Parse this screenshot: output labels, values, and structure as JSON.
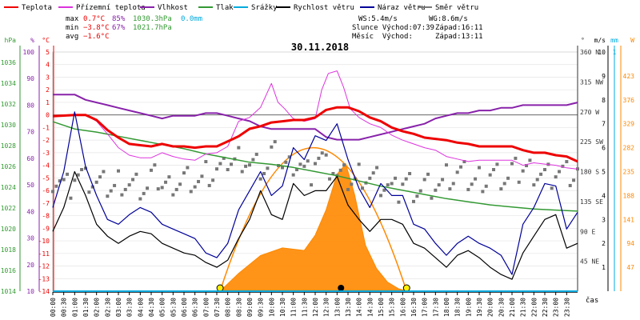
{
  "legend": [
    {
      "label": "Teplota",
      "color": "#ee0000"
    },
    {
      "label": "Přízemní teplota",
      "color": "#dd33dd"
    },
    {
      "label": "Vlhkost",
      "color": "#8822aa"
    },
    {
      "label": "Tlak",
      "color": "#339933"
    },
    {
      "label": "Srážky",
      "color": "#00aadd"
    },
    {
      "label": "Rychlost větru",
      "color": "#000000"
    },
    {
      "label": "Náraz větru",
      "color": "#000099"
    },
    {
      "label": "Směr větru",
      "color": "#777777"
    }
  ],
  "stats": {
    "max_label": "max",
    "max_temp": "0.7°C",
    "max_hum": "85%",
    "max_press": "1030.3hPa",
    "max_rain": "0.0mm",
    "min_label": "min",
    "min_temp": "−3.8°C",
    "min_hum": "67%",
    "min_press": "1021.7hPa",
    "avg_label": "avg",
    "avg_temp": "−1.6°C",
    "ws": "WS:5.4m/s",
    "wg": "WG:8.6m/s",
    "sun_rise": "Slunce Východ:07:39",
    "sun_set": "Západ:16:11",
    "moon_rise": "Měsíc  Východ:",
    "moon_set": "Západ:13:11"
  },
  "colors": {
    "temp": "#ee0000",
    "ground": "#dd33dd",
    "hum": "#8822aa",
    "press": "#339933",
    "rain": "#00aadd",
    "wind": "#000000",
    "gust": "#000099",
    "dir": "#777777",
    "solar": "#ff8800",
    "sunpath": "#ff8800"
  },
  "chart_data": {
    "type": "line",
    "title": "30.11.2018",
    "xlabel": "čas",
    "x_ticks": [
      "00:00",
      "00:30",
      "01:00",
      "01:30",
      "02:00",
      "02:30",
      "03:00",
      "03:30",
      "04:00",
      "04:30",
      "05:00",
      "05:30",
      "06:00",
      "06:30",
      "07:00",
      "07:30",
      "08:00",
      "08:30",
      "09:00",
      "09:30",
      "10:00",
      "10:30",
      "11:00",
      "11:30",
      "12:00",
      "12:30",
      "13:00",
      "13:30",
      "14:00",
      "14:30",
      "15:00",
      "15:30",
      "16:00",
      "16:30",
      "17:00",
      "17:30",
      "18:00",
      "18:30",
      "19:00",
      "19:30",
      "20:00",
      "20:30",
      "21:00",
      "21:30",
      "22:00",
      "22:30",
      "23:00",
      "23:30"
    ],
    "xlim_hours": [
      0,
      24
    ],
    "axes": {
      "hPa": {
        "label": "hPa",
        "ticks": [
          "1036",
          "1034",
          "1032",
          "1030",
          "1028",
          "1026",
          "1024",
          "1022",
          "1020",
          "1018",
          "1016",
          "1014"
        ],
        "ylim": [
          1014,
          1037
        ]
      },
      "humidity": {
        "label": "%",
        "ticks": [
          "100",
          "90",
          "80",
          "70",
          "60",
          "50",
          "40",
          "30",
          "20",
          "10"
        ],
        "ylim": [
          10,
          100
        ]
      },
      "temperature": {
        "label": "°C",
        "ticks": [
          "5",
          "4",
          "3",
          "2",
          "1",
          "0",
          "-1",
          "-2",
          "-3",
          "-4",
          "-5",
          "-6",
          "-7",
          "-8",
          "-9",
          "-10",
          "-11",
          "-12",
          "-13",
          "-14"
        ],
        "ylim": [
          -14,
          5
        ]
      },
      "direction": {
        "label": "°",
        "ticks": [
          "360 N",
          "315 NW",
          "270 W",
          "225 SW",
          "180 S",
          "135 SE",
          "90 E",
          "45 NE"
        ],
        "ylim": [
          0,
          360
        ]
      },
      "wind": {
        "label": "m/s",
        "ticks": [
          "10",
          "9",
          "8",
          "7",
          "6",
          "5",
          "4",
          "3",
          "2",
          "1"
        ],
        "ylim": [
          0,
          10
        ]
      },
      "rain": {
        "label": "mm",
        "ticks": [
          "1"
        ],
        "ylim": [
          0,
          1
        ]
      },
      "solar": {
        "label": "W",
        "ticks": [
          "423",
          "376",
          "329",
          "282",
          "235",
          "188",
          "141",
          "94",
          "47"
        ],
        "ylim": [
          0,
          470
        ]
      }
    },
    "series": [
      {
        "name": "Teplota",
        "unit": "°C",
        "x": [
          0,
          1,
          1.5,
          2,
          2.5,
          3,
          3.5,
          4,
          4.5,
          5,
          5.5,
          6,
          6.5,
          7,
          7.5,
          8,
          8.5,
          9,
          9.5,
          10,
          10.5,
          11,
          11.5,
          12,
          12.5,
          13,
          13.5,
          14,
          14.5,
          15,
          15.5,
          16,
          16.5,
          17,
          17.5,
          18,
          18.5,
          19,
          19.5,
          20,
          20.5,
          21,
          21.5,
          22,
          22.5,
          23,
          23.5,
          24
        ],
        "y": [
          -0.1,
          0.0,
          0.0,
          -0.4,
          -1.2,
          -1.8,
          -2.3,
          -2.4,
          -2.5,
          -2.3,
          -2.5,
          -2.5,
          -2.6,
          -2.5,
          -2.5,
          -2.1,
          -1.7,
          -1.1,
          -0.9,
          -0.6,
          -0.5,
          -0.4,
          -0.4,
          -0.2,
          0.4,
          0.6,
          0.6,
          0.3,
          -0.2,
          -0.5,
          -1.0,
          -1.3,
          -1.5,
          -1.8,
          -1.9,
          -2.0,
          -2.2,
          -2.3,
          -2.5,
          -2.5,
          -2.5,
          -2.5,
          -2.8,
          -3.0,
          -3.0,
          -3.2,
          -3.3,
          -3.7
        ]
      },
      {
        "name": "Přízemní teplota",
        "unit": "°C",
        "x": [
          0,
          1,
          1.5,
          2,
          2.5,
          3,
          3.5,
          4,
          4.5,
          5,
          5.5,
          6,
          6.5,
          7,
          7.5,
          8,
          8.5,
          9,
          9.5,
          10,
          10.3,
          10.6,
          11,
          11.5,
          12,
          12.3,
          12.6,
          13,
          13.3,
          13.6,
          14,
          14.5,
          15,
          15.5,
          16,
          16.5,
          17,
          17.5,
          18,
          18.5,
          19,
          19.5,
          20,
          20.5,
          21,
          21.5,
          22,
          22.5,
          23,
          23.5,
          24
        ],
        "y": [
          -0.1,
          0.0,
          0.0,
          -0.5,
          -1.5,
          -2.6,
          -3.2,
          -3.4,
          -3.4,
          -3.0,
          -3.3,
          -3.5,
          -3.6,
          -3.1,
          -3.0,
          -2.5,
          -0.5,
          -0.2,
          0.6,
          2.5,
          1.0,
          0.5,
          -0.3,
          -0.5,
          -0.3,
          2.0,
          3.3,
          3.5,
          2.2,
          0.5,
          -0.2,
          -0.7,
          -1.0,
          -1.6,
          -2.0,
          -2.3,
          -2.6,
          -2.8,
          -3.3,
          -3.5,
          -3.7,
          -3.6,
          -3.6,
          -3.6,
          -3.6,
          -4.0,
          -3.8,
          -3.9,
          -4.0,
          -4.2,
          -4.3
        ]
      },
      {
        "name": "Vlhkost",
        "unit": "%",
        "x": [
          0,
          0.5,
          1,
          1.5,
          2,
          2.5,
          3,
          3.5,
          4,
          4.5,
          5,
          5.5,
          6,
          6.5,
          7,
          7.5,
          8,
          8.5,
          9,
          9.5,
          10,
          10.5,
          11,
          11.5,
          12,
          12.5,
          13,
          13.5,
          14,
          14.5,
          15,
          15.5,
          16,
          16.5,
          17,
          17.5,
          18,
          18.5,
          19,
          19.5,
          20,
          20.5,
          21,
          21.5,
          22,
          22.5,
          23,
          23.5,
          24
        ],
        "y": [
          84,
          84,
          84,
          82,
          81,
          80,
          79,
          78,
          77,
          76,
          75,
          76,
          76,
          76,
          77,
          77,
          76,
          75,
          74,
          72,
          71,
          71,
          71,
          71,
          71,
          68,
          67,
          67,
          67,
          68,
          69,
          70,
          71,
          72,
          73,
          75,
          76,
          77,
          77,
          78,
          78,
          79,
          79,
          80,
          80,
          80,
          80,
          80,
          81
        ]
      },
      {
        "name": "Tlak",
        "unit": "hPa",
        "x": [
          0,
          1,
          2,
          3,
          4,
          5,
          6,
          7,
          8,
          9,
          10,
          11,
          12,
          13,
          14,
          15,
          16,
          17,
          18,
          19,
          20,
          21,
          22,
          23,
          24
        ],
        "y": [
          1030.3,
          1029.6,
          1029.3,
          1028.9,
          1028.5,
          1028.1,
          1027.7,
          1027.2,
          1026.8,
          1026.4,
          1026.2,
          1025.9,
          1025.5,
          1025.1,
          1024.6,
          1024.1,
          1023.7,
          1023.3,
          1022.9,
          1022.6,
          1022.3,
          1022.1,
          1021.9,
          1021.8,
          1021.7
        ]
      },
      {
        "name": "Rychlost větru",
        "unit": "m/s",
        "x": [
          0,
          0.5,
          1,
          1.5,
          2,
          2.5,
          3,
          3.5,
          4,
          4.5,
          5,
          5.5,
          6,
          6.5,
          7,
          7.5,
          8,
          8.5,
          9,
          9.5,
          10,
          10.5,
          11,
          11.5,
          12,
          12.5,
          13,
          13.5,
          14,
          14.5,
          15,
          15.5,
          16,
          16.5,
          17,
          17.5,
          18,
          18.5,
          19,
          19.5,
          20,
          20.5,
          21,
          21.5,
          22,
          22.5,
          23,
          23.5,
          24
        ],
        "y": [
          2.5,
          3.5,
          5.0,
          4.0,
          2.8,
          2.3,
          2.0,
          2.3,
          2.5,
          2.4,
          2.0,
          1.8,
          1.6,
          1.5,
          1.2,
          1.0,
          1.3,
          2.2,
          3.0,
          4.2,
          3.2,
          3.0,
          4.5,
          4.0,
          4.2,
          4.2,
          4.8,
          3.6,
          3.0,
          2.5,
          3.0,
          3.0,
          2.8,
          2.0,
          1.8,
          1.4,
          1.0,
          1.5,
          1.7,
          1.4,
          1.0,
          0.7,
          0.5,
          1.6,
          2.3,
          3.0,
          3.2,
          1.8,
          2.0
        ]
      },
      {
        "name": "Náraz větru",
        "unit": "m/s",
        "x": [
          0,
          0.5,
          1,
          1.5,
          2,
          2.5,
          3,
          3.5,
          4,
          4.5,
          5,
          5.5,
          6,
          6.5,
          7,
          7.5,
          8,
          8.5,
          9,
          9.5,
          10,
          10.5,
          11,
          11.5,
          12,
          12.5,
          13,
          13.5,
          14,
          14.5,
          15,
          15.5,
          16,
          16.5,
          17,
          17.5,
          18,
          18.5,
          19,
          19.5,
          20,
          20.5,
          21,
          21.5,
          22,
          22.5,
          23,
          23.5,
          24
        ],
        "y": [
          3.5,
          5.0,
          7.5,
          5.2,
          4.0,
          3.0,
          2.8,
          3.2,
          3.5,
          3.3,
          2.8,
          2.6,
          2.4,
          2.2,
          1.6,
          1.4,
          2.0,
          3.4,
          4.2,
          5.0,
          4.0,
          4.4,
          6.0,
          5.5,
          6.5,
          6.3,
          7.0,
          5.5,
          4.3,
          3.5,
          4.5,
          4.0,
          4.0,
          2.8,
          2.6,
          2.0,
          1.5,
          2.0,
          2.3,
          2.0,
          1.8,
          1.5,
          0.7,
          2.8,
          3.5,
          4.5,
          4.4,
          2.6,
          3.3
        ]
      },
      {
        "name": "Srážky",
        "unit": "mm",
        "x": [
          0,
          24
        ],
        "y": [
          0,
          0
        ]
      },
      {
        "name": "Směr větru",
        "unit": "°",
        "x": [
          0,
          0.5,
          1,
          1.5,
          2,
          2.5,
          3,
          3.5,
          4,
          4.5,
          5,
          5.5,
          6,
          6.5,
          7,
          7.5,
          8,
          8.5,
          9,
          9.5,
          10,
          10.5,
          11,
          11.5,
          12,
          12.5,
          13,
          13.5,
          14,
          14.5,
          15,
          15.5,
          16,
          16.5,
          17,
          17.5,
          18,
          18.5,
          19,
          19.5,
          20,
          20.5,
          21,
          21.5,
          22,
          22.5,
          23,
          23.5,
          24
        ],
        "y": [
          170,
          160,
          175,
          165,
          160,
          155,
          165,
          160,
          155,
          170,
          160,
          165,
          170,
          165,
          175,
          180,
          195,
          200,
          190,
          185,
          205,
          190,
          195,
          180,
          200,
          185,
          170,
          165,
          175,
          170,
          160,
          150,
          165,
          155,
          160,
          160,
          170,
          175,
          165,
          170,
          175,
          170,
          180,
          185,
          180,
          175,
          180,
          175,
          180
        ]
      }
    ],
    "solar_radiation": {
      "name": "Sluneční záření",
      "unit": "W/m²",
      "x": [
        7.65,
        8.5,
        9.5,
        10.5,
        11.5,
        12,
        12.5,
        13,
        13.4,
        13.8,
        14.3,
        14.8,
        15.3,
        15.8,
        16.2
      ],
      "y": [
        0,
        35,
        70,
        85,
        80,
        110,
        160,
        230,
        250,
        190,
        90,
        45,
        18,
        5,
        0
      ]
    },
    "sun_path": {
      "rise_hour": 7.65,
      "set_hour": 16.18,
      "peak_w": 282
    }
  }
}
